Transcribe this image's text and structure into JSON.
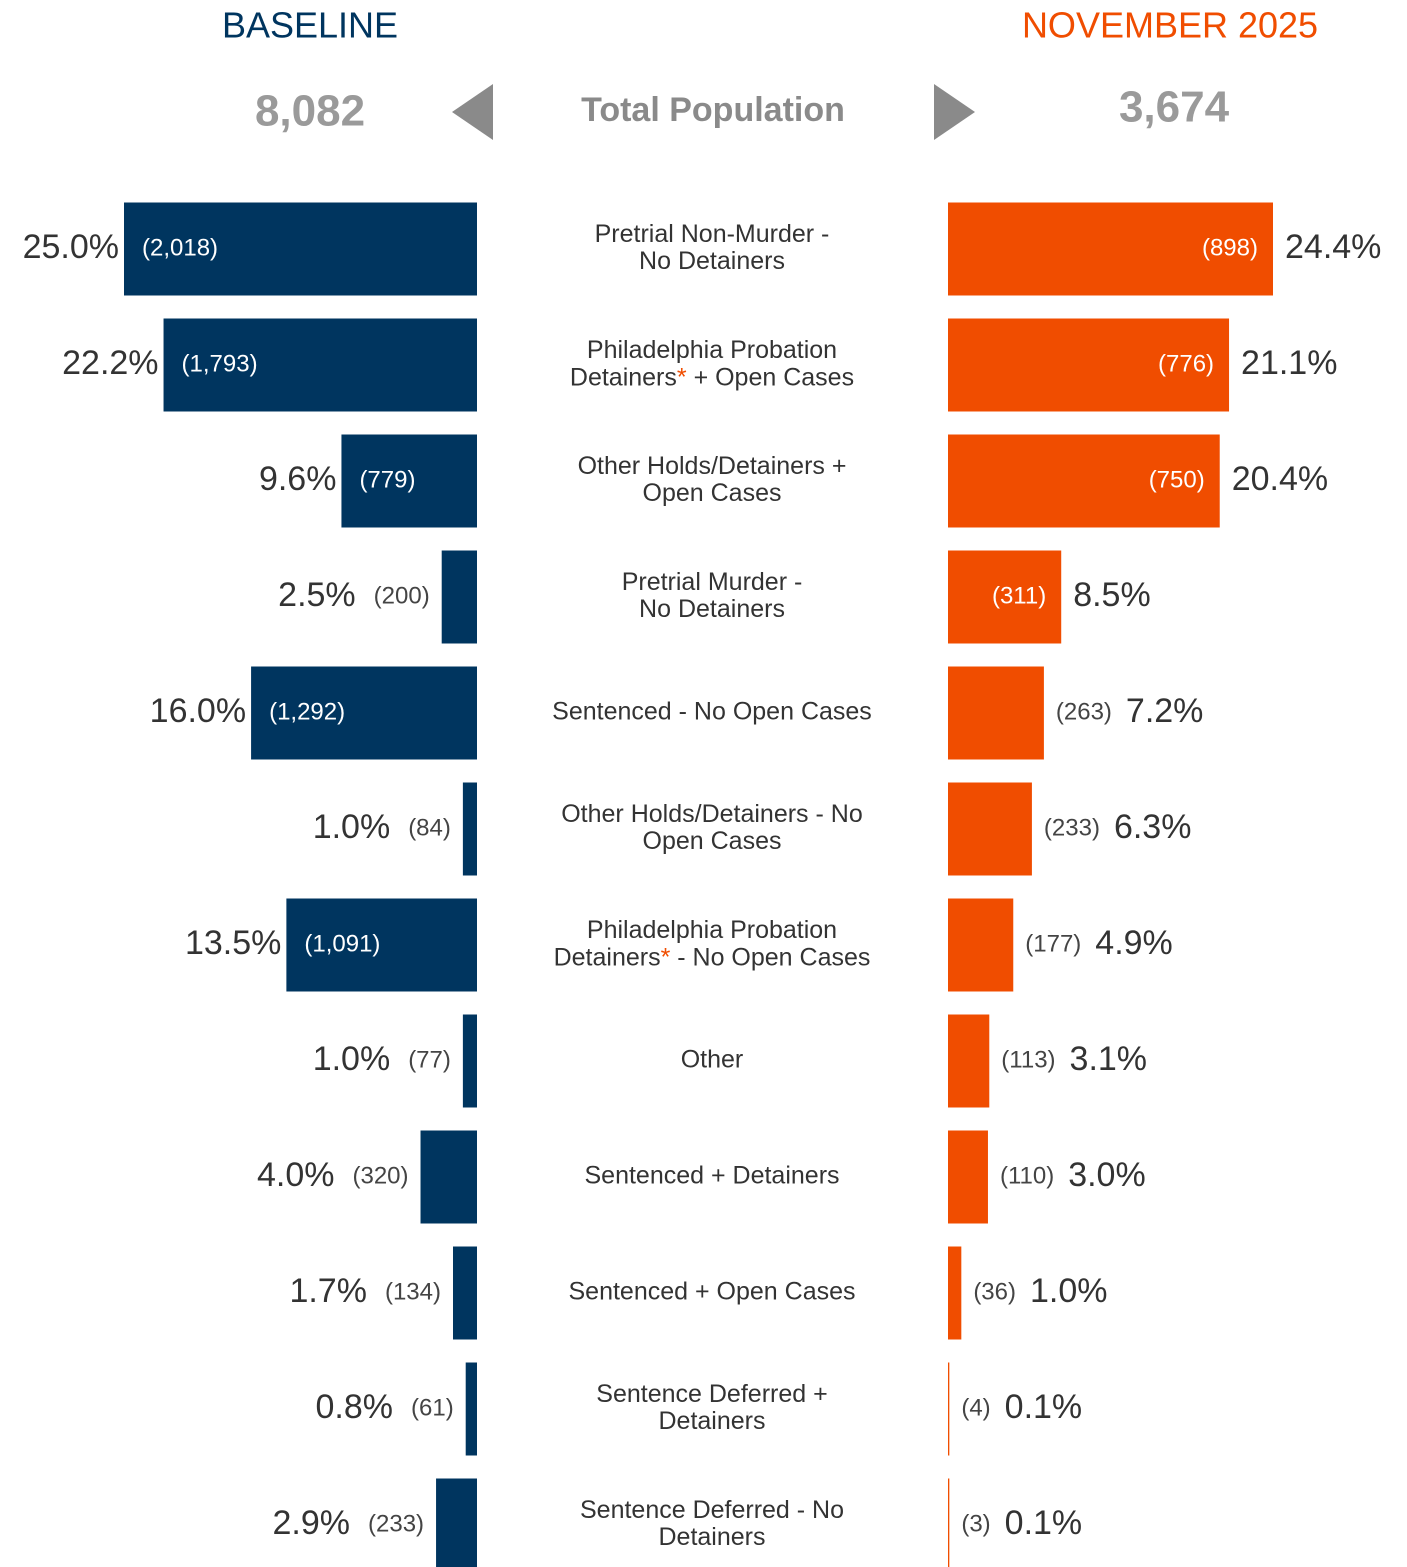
{
  "chart_data": {
    "type": "butterfly-bar",
    "center_label": "Total Population",
    "categories": [
      [
        "Pretrial Non-Murder -",
        "No Detainers"
      ],
      [
        "Philadelphia Probation",
        "Detainers* + Open Cases"
      ],
      [
        "Other Holds/Detainers +",
        "Open Cases"
      ],
      [
        "Pretrial Murder -",
        "No Detainers"
      ],
      [
        "Sentenced - No Open Cases"
      ],
      [
        "Other Holds/Detainers  - No",
        "Open Cases"
      ],
      [
        "Philadelphia Probation",
        "Detainers* - No Open Cases"
      ],
      [
        "Other"
      ],
      [
        "Sentenced + Detainers"
      ],
      [
        "Sentenced + Open Cases"
      ],
      [
        "Sentence Deferred +",
        "Detainers"
      ],
      [
        "Sentence Deferred - No",
        "Detainers"
      ]
    ],
    "series": [
      {
        "name": "BASELINE",
        "color": "#00355f",
        "total": "8,082",
        "values": [
          25.0,
          22.2,
          9.6,
          2.5,
          16.0,
          1.0,
          13.5,
          1.0,
          4.0,
          1.7,
          0.8,
          2.9
        ],
        "value_labels": [
          "25.0%",
          "22.2%",
          "9.6%",
          "2.5%",
          "16.0%",
          "1.0%",
          "13.5%",
          "1.0%",
          "4.0%",
          "1.7%",
          "0.8%",
          "2.9%"
        ],
        "counts": [
          2018,
          1793,
          779,
          200,
          1292,
          84,
          1091,
          77,
          320,
          134,
          61,
          233
        ],
        "count_labels": [
          "(2,018)",
          "(1,793)",
          "(779)",
          "(200)",
          "(1,292)",
          "(84)",
          "(1,091)",
          "(77)",
          "(320)",
          "(134)",
          "(61)",
          "(233)"
        ]
      },
      {
        "name": "NOVEMBER 2025",
        "color": "#f04d00",
        "total": "3,674",
        "values": [
          24.4,
          21.1,
          20.4,
          8.5,
          7.2,
          6.3,
          4.9,
          3.1,
          3.0,
          1.0,
          0.1,
          0.1
        ],
        "value_labels": [
          "24.4%",
          "21.1%",
          "20.4%",
          "8.5%",
          "7.2%",
          "6.3%",
          "4.9%",
          "3.1%",
          "3.0%",
          "1.0%",
          "0.1%",
          "0.1%"
        ],
        "counts": [
          898,
          776,
          750,
          311,
          263,
          233,
          177,
          113,
          110,
          36,
          4,
          3
        ],
        "count_labels": [
          "(898)",
          "(776)",
          "(750)",
          "(311)",
          "(263)",
          "(233)",
          "(177)",
          "(113)",
          "(110)",
          "(36)",
          "(4)",
          "(3)"
        ]
      }
    ]
  }
}
